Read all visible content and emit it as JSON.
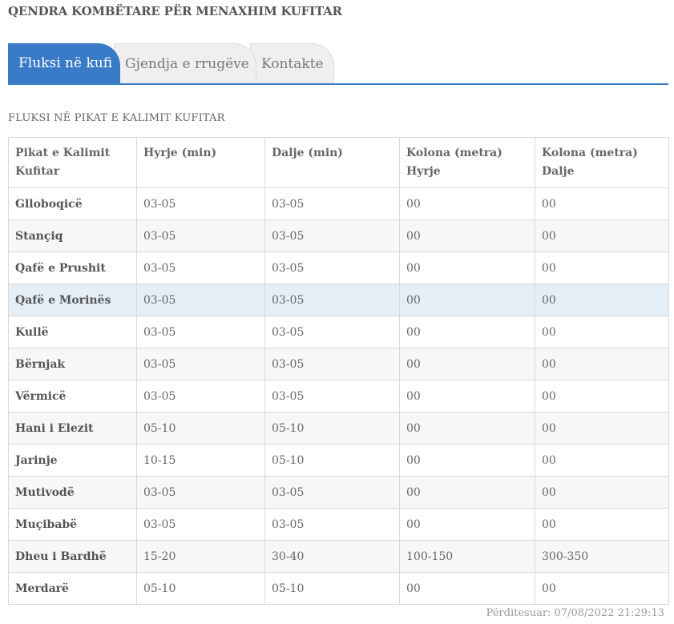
{
  "header": {
    "title": "QENDRA KOMBËTARE PËR MENAXHIM KUFITAR"
  },
  "tabs": [
    {
      "label": "Fluksi në kufi",
      "active": true
    },
    {
      "label": "Gjendja e rrugëve",
      "active": false
    },
    {
      "label": "Kontakte",
      "active": false
    }
  ],
  "section": {
    "title": "FLUKSI NË PIKAT E KALIMIT KUFITAR"
  },
  "table": {
    "headers": [
      [
        "Pikat e Kalimit",
        "Kufitar"
      ],
      [
        "Hyrje (min)",
        ""
      ],
      [
        "Dalje (min)",
        ""
      ],
      [
        "Kolona (metra)",
        "Hyrje"
      ],
      [
        "Kolona (metra)",
        "Dalje"
      ]
    ],
    "rows": [
      [
        "Glloboqicë",
        "03-05",
        "03-05",
        "00",
        "00"
      ],
      [
        "Stanҫiq",
        "03-05",
        "03-05",
        "00",
        "00"
      ],
      [
        "Qafë e Prushit",
        "03-05",
        "03-05",
        "00",
        "00"
      ],
      [
        "Qafë e Morinës",
        "03-05",
        "03-05",
        "00",
        "00"
      ],
      [
        "Kullë",
        "03-05",
        "03-05",
        "00",
        "00"
      ],
      [
        "Bërnjak",
        "03-05",
        "03-05",
        "00",
        "00"
      ],
      [
        "Vërmicë",
        "03-05",
        "03-05",
        "00",
        "00"
      ],
      [
        "Hani i Elezit",
        "05-10",
        "05-10",
        "00",
        "00"
      ],
      [
        "Jarinje",
        "10-15",
        "05-10",
        "00",
        "00"
      ],
      [
        "Mutivodë",
        "03-05",
        "03-05",
        "00",
        "00"
      ],
      [
        "Muҫibabë",
        "03-05",
        "03-05",
        "00",
        "00"
      ],
      [
        "Dheu i Bardhë",
        "15-20",
        "30-40",
        "100-150",
        "300-350"
      ],
      [
        "Merdarë",
        "05-10",
        "05-10",
        "00",
        "00"
      ]
    ],
    "highlighted_row": 3
  },
  "footer": {
    "updated": "Përditesuar: 07/08/2022 21:29:13"
  },
  "colors": {
    "accent": "#3a7bc8",
    "highlight_row": "#e3eef7"
  }
}
